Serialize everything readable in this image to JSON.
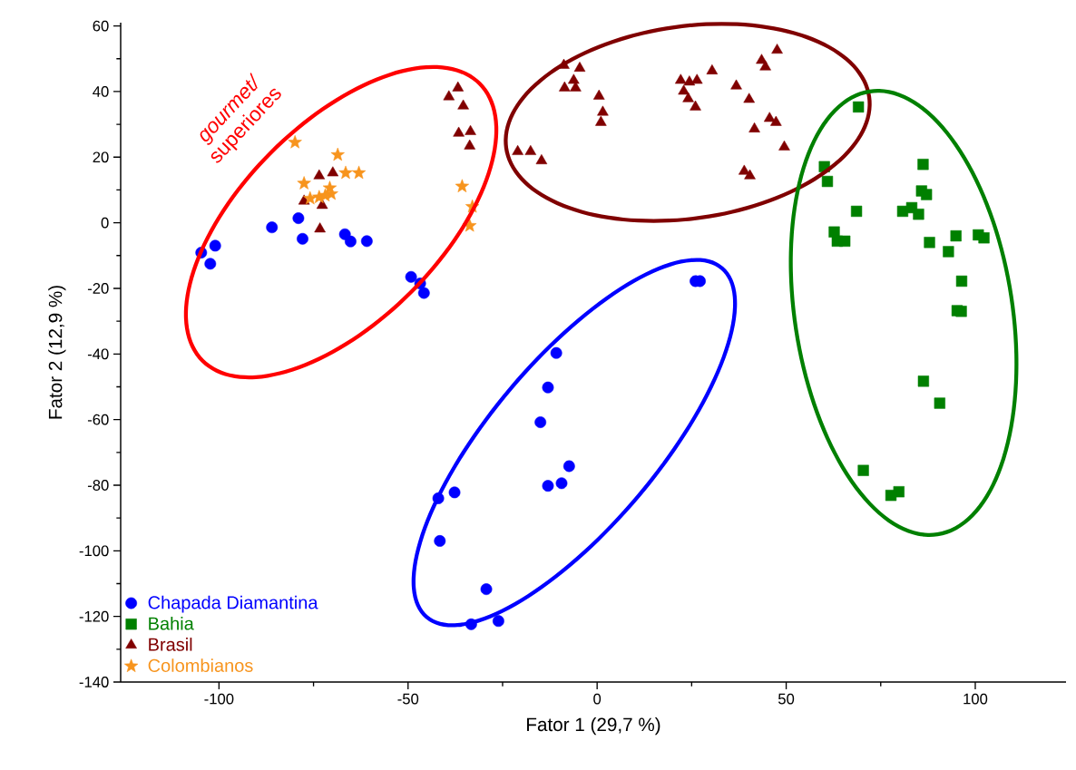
{
  "chart_data": {
    "type": "scatter",
    "xlabel": "Fator 1 (29,7 %)",
    "ylabel": "Fator 2 (12,9 %)",
    "xlim": [
      -126,
      124
    ],
    "ylim": [
      -140,
      61
    ],
    "xticks": [
      -100,
      -50,
      0,
      50,
      100
    ],
    "yticks": [
      -140,
      -120,
      -100,
      -80,
      -60,
      -40,
      -20,
      0,
      20,
      40,
      60
    ],
    "grid": false,
    "legend": "bottom left",
    "annotations": [
      "*gourmet/* superiores"
    ],
    "series": [
      {
        "name": "Chapada Diamantina",
        "color": "#0000ff",
        "marker": "circle",
        "x": [
          -104.7,
          -101,
          -102.3,
          -86,
          -79,
          -77.9,
          -66.7,
          -65.2,
          -60.9,
          -49.2,
          -46.8,
          -45.8,
          27.2,
          26,
          -10.8,
          -13,
          -15,
          -7.4,
          -9.4,
          -13,
          -37.7,
          -42,
          -41.6,
          -29.3,
          -33.3,
          -26.1
        ],
        "values": [
          -9.1,
          -7,
          -12.5,
          -1.4,
          1.4,
          -4.9,
          -3.5,
          -5.7,
          -5.6,
          -16.5,
          -18.5,
          -21.4,
          -17.8,
          -17.8,
          -39.7,
          -50.2,
          -60.8,
          -74.2,
          -79.4,
          -80.2,
          -82.2,
          -84,
          -97,
          -111.7,
          -122.4,
          -121.4
        ]
      },
      {
        "name": "Bahia",
        "color": "#008000",
        "marker": "square",
        "x": [
          69.1,
          60.1,
          60.9,
          86.2,
          85.8,
          87.1,
          68.6,
          80.8,
          83.2,
          85,
          62.7,
          63.5,
          65.5,
          87.9,
          94.9,
          92.9,
          100.8,
          102.3,
          96.4,
          95.2,
          96.3,
          86.3,
          90.6,
          70.4,
          79.8,
          77.7
        ],
        "values": [
          35.3,
          17.1,
          12.6,
          17.8,
          9.7,
          8.6,
          3.5,
          3.5,
          4.6,
          2.6,
          -2.8,
          -5.6,
          -5.6,
          -6,
          -4,
          -8.8,
          -3.7,
          -4.6,
          -17.8,
          -26.8,
          -27,
          -48.3,
          -55,
          -75.5,
          -82,
          -83.1
        ]
      },
      {
        "name": "Brasil",
        "color": "#800000",
        "marker": "triangle",
        "x": [
          -8.8,
          -4.6,
          -6.2,
          -8.6,
          -5.7,
          0.5,
          1.5,
          1,
          -21,
          -17.6,
          -14.7,
          22.1,
          24.4,
          26.4,
          22.9,
          24.1,
          26,
          30.4,
          36.8,
          40.2,
          43.5,
          44.5,
          47.6,
          41.6,
          45.6,
          47.3,
          49.5,
          38.9,
          40.4,
          -39.2,
          -36.8,
          -35.4,
          -36.6,
          -33.5,
          -33.7,
          -73.5,
          -69.9,
          -77.5,
          -72.7,
          -73.3
        ],
        "values": [
          48,
          47.1,
          43.4,
          41.1,
          41.1,
          38.6,
          33.7,
          30.6,
          21.7,
          21.7,
          18.9,
          43.4,
          42.9,
          43.4,
          40.1,
          37.8,
          35.3,
          46.3,
          41.7,
          37.6,
          49.5,
          47.5,
          52.6,
          28.6,
          31.8,
          30.6,
          23.1,
          15.7,
          14.3,
          38.4,
          41.1,
          35.6,
          27.3,
          27.8,
          23.4,
          14.3,
          15.2,
          6.6,
          5.3,
          -1.9
        ]
      },
      {
        "name": "Colombianos",
        "color": "#f7941d",
        "marker": "star",
        "x": [
          -79.9,
          -68.6,
          -66.5,
          -63,
          -77.5,
          -75.9,
          -73.5,
          -70.7,
          -70.3,
          -71.9,
          -35.7,
          -33,
          -33.7
        ],
        "values": [
          24.5,
          20.7,
          15.2,
          15.2,
          12,
          7.4,
          7.8,
          10.6,
          8.8,
          8.3,
          11.1,
          4.9,
          -0.9
        ]
      }
    ]
  }
}
